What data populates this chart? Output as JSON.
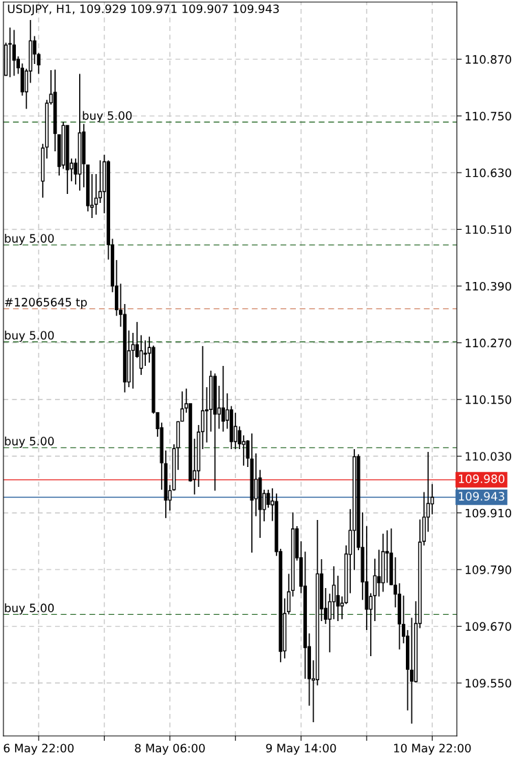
{
  "chart_data": {
    "type": "candlestick",
    "title": "USDJPY, H1, 109.929 109.971 109.907 109.943",
    "categories": [
      null,
      null,
      null,
      null,
      null,
      null,
      null,
      null,
      "6 May 22:00",
      null,
      null,
      null,
      null,
      null,
      null,
      null,
      null,
      null,
      null,
      null,
      null,
      null,
      null,
      null,
      null,
      null,
      null,
      null,
      null,
      null,
      null,
      null,
      null,
      null,
      null,
      null,
      null,
      null,
      null,
      null,
      "8 May 06:00",
      null,
      null,
      null,
      null,
      null,
      null,
      null,
      null,
      null,
      null,
      null,
      null,
      null,
      null,
      null,
      null,
      null,
      null,
      null,
      null,
      null,
      null,
      null,
      null,
      null,
      null,
      null,
      null,
      null,
      null,
      null,
      "9 May 14:00",
      null,
      null,
      null,
      null,
      null,
      null,
      null,
      null,
      null,
      null,
      null,
      null,
      null,
      null,
      null,
      null,
      null,
      null,
      null,
      null,
      null,
      null,
      null,
      null,
      null,
      null,
      null,
      null,
      null,
      null,
      null,
      "10 May 22:00"
    ],
    "ohlc": [
      [
        110.836,
        110.905,
        110.835,
        110.9
      ],
      [
        110.902,
        110.937,
        110.832,
        110.903
      ],
      [
        110.9,
        110.932,
        110.835,
        110.868
      ],
      [
        110.87,
        110.876,
        110.839,
        110.852
      ],
      [
        110.851,
        110.861,
        110.793,
        110.801
      ],
      [
        110.801,
        110.85,
        110.765,
        110.845
      ],
      [
        110.845,
        110.953,
        110.82,
        110.909
      ],
      [
        110.909,
        110.919,
        110.86,
        110.881
      ],
      [
        110.88,
        110.883,
        110.839,
        110.858
      ],
      [
        110.612,
        110.691,
        110.577,
        110.682
      ],
      [
        110.684,
        110.784,
        110.66,
        110.777
      ],
      [
        110.778,
        110.847,
        110.774,
        110.796
      ],
      [
        110.8,
        110.848,
        110.675,
        110.713
      ],
      [
        110.71,
        110.71,
        110.624,
        110.643
      ],
      [
        110.646,
        110.737,
        110.638,
        110.73
      ],
      [
        110.73,
        110.73,
        110.585,
        110.636
      ],
      [
        110.638,
        110.66,
        110.612,
        110.65
      ],
      [
        110.65,
        110.66,
        110.605,
        110.627
      ],
      [
        110.627,
        110.839,
        110.592,
        110.714
      ],
      [
        110.716,
        110.733,
        110.599,
        110.649
      ],
      [
        110.646,
        110.646,
        110.548,
        110.56
      ],
      [
        110.557,
        110.627,
        110.534,
        110.561
      ],
      [
        110.563,
        110.627,
        110.541,
        110.576
      ],
      [
        110.577,
        110.656,
        110.566,
        110.59
      ],
      [
        110.59,
        110.668,
        110.544,
        110.653
      ],
      [
        110.653,
        110.656,
        110.446,
        110.478
      ],
      [
        110.477,
        110.49,
        110.377,
        110.39
      ],
      [
        110.39,
        110.445,
        110.327,
        110.34
      ],
      [
        110.339,
        110.395,
        110.304,
        110.33
      ],
      [
        110.33,
        110.352,
        110.165,
        110.187
      ],
      [
        110.187,
        110.296,
        110.176,
        110.253
      ],
      [
        110.254,
        110.291,
        110.173,
        110.266
      ],
      [
        110.266,
        110.314,
        110.238,
        110.241
      ],
      [
        110.216,
        110.286,
        110.202,
        110.253
      ],
      [
        110.246,
        110.275,
        110.221,
        110.248
      ],
      [
        110.248,
        110.283,
        110.228,
        110.26
      ],
      [
        110.26,
        110.264,
        110.12,
        110.123
      ],
      [
        110.122,
        110.122,
        110.071,
        110.088
      ],
      [
        110.09,
        110.101,
        109.959,
        110.016
      ],
      [
        110.014,
        110.042,
        109.899,
        109.937
      ],
      [
        109.937,
        109.969,
        109.915,
        109.957
      ],
      [
        109.959,
        110.055,
        109.957,
        110.046
      ],
      [
        110.048,
        110.104,
        110.001,
        110.103
      ],
      [
        110.104,
        110.167,
        110.103,
        110.13
      ],
      [
        110.132,
        110.173,
        110.122,
        110.141
      ],
      [
        110.141,
        110.141,
        109.976,
        109.978
      ],
      [
        109.981,
        110.067,
        109.949,
        109.999
      ],
      [
        109.999,
        110.096,
        109.965,
        110.081
      ],
      [
        110.082,
        110.263,
        110.045,
        110.126
      ],
      [
        110.126,
        110.176,
        110.059,
        110.128
      ],
      [
        110.129,
        110.211,
        110.082,
        110.199
      ],
      [
        110.199,
        110.205,
        109.957,
        110.119
      ],
      [
        110.119,
        110.179,
        110.088,
        110.132
      ],
      [
        110.132,
        110.221,
        110.082,
        110.104
      ],
      [
        110.106,
        110.163,
        110.088,
        110.128
      ],
      [
        110.128,
        110.136,
        110.045,
        110.061
      ],
      [
        110.061,
        110.122,
        110.045,
        110.093
      ],
      [
        110.084,
        110.093,
        110.045,
        110.056
      ],
      [
        110.055,
        110.074,
        110.01,
        110.061
      ],
      [
        110.062,
        110.064,
        110.007,
        110.026
      ],
      [
        110.024,
        110.078,
        109.826,
        109.937
      ],
      [
        109.94,
        110.036,
        109.903,
        109.981
      ],
      [
        109.984,
        110.001,
        109.857,
        109.917
      ],
      [
        109.917,
        109.959,
        109.892,
        109.951
      ],
      [
        109.951,
        109.959,
        109.921,
        109.928
      ],
      [
        109.927,
        109.962,
        109.893,
        109.935
      ],
      [
        109.934,
        109.951,
        109.819,
        109.828
      ],
      [
        109.828,
        109.834,
        109.594,
        109.617
      ],
      [
        109.618,
        109.729,
        109.602,
        109.697
      ],
      [
        109.701,
        109.781,
        109.695,
        109.743
      ],
      [
        109.746,
        109.911,
        109.733,
        109.876
      ],
      [
        109.876,
        109.882,
        109.809,
        109.815
      ],
      [
        109.815,
        109.85,
        109.74,
        109.755
      ],
      [
        109.755,
        109.828,
        109.559,
        109.625
      ],
      [
        109.627,
        109.655,
        109.502,
        109.559
      ],
      [
        109.556,
        109.598,
        109.467,
        109.559
      ],
      [
        109.557,
        109.895,
        109.545,
        109.781
      ],
      [
        109.781,
        109.812,
        109.681,
        109.707
      ],
      [
        109.708,
        109.751,
        109.675,
        109.685
      ],
      [
        109.685,
        109.739,
        109.615,
        109.722
      ],
      [
        109.722,
        109.797,
        109.685,
        109.757
      ],
      [
        109.735,
        109.777,
        109.681,
        109.713
      ],
      [
        109.713,
        109.733,
        109.685,
        109.719
      ],
      [
        109.72,
        109.841,
        109.717,
        109.823
      ],
      [
        109.822,
        109.918,
        109.74,
        109.873
      ],
      [
        109.873,
        110.045,
        109.789,
        110.029
      ],
      [
        110.029,
        110.034,
        109.831,
        109.837
      ],
      [
        109.837,
        109.911,
        109.726,
        109.764
      ],
      [
        109.764,
        109.882,
        109.662,
        109.706
      ],
      [
        109.706,
        109.74,
        109.607,
        109.733
      ],
      [
        109.735,
        109.813,
        109.681,
        109.777
      ],
      [
        109.775,
        109.832,
        109.733,
        109.762
      ],
      [
        109.762,
        109.866,
        109.743,
        109.828
      ],
      [
        109.828,
        109.873,
        109.762,
        109.825
      ],
      [
        109.825,
        109.877,
        109.757,
        109.758
      ],
      [
        109.757,
        109.816,
        109.71,
        109.738
      ],
      [
        109.738,
        109.761,
        109.621,
        109.675
      ],
      [
        109.674,
        109.735,
        109.634,
        109.649
      ],
      [
        109.649,
        109.662,
        109.492,
        109.579
      ],
      [
        109.577,
        109.688,
        109.464,
        109.554
      ],
      [
        109.553,
        109.723,
        109.551,
        109.676
      ],
      [
        109.676,
        109.896,
        109.666,
        109.848
      ],
      [
        109.85,
        109.954,
        109.841,
        109.901
      ],
      [
        109.901,
        110.039,
        109.87,
        109.93
      ],
      [
        109.929,
        109.971,
        109.907,
        109.943
      ]
    ],
    "ylim": [
      109.438,
      110.991
    ],
    "yticks": [
      {
        "value": 109.55,
        "label": "109.550"
      },
      {
        "value": 109.67,
        "label": "109.670"
      },
      {
        "value": 109.79,
        "label": "109.790"
      },
      {
        "value": 109.91,
        "label": "109.910"
      },
      {
        "value": 110.03,
        "label": "110.030"
      },
      {
        "value": 110.15,
        "label": "110.150"
      },
      {
        "value": 110.27,
        "label": "110.270"
      },
      {
        "value": 110.39,
        "label": "110.390"
      },
      {
        "value": 110.51,
        "label": "110.510"
      },
      {
        "value": 110.63,
        "label": "110.630"
      },
      {
        "value": 110.75,
        "label": "110.750"
      },
      {
        "value": 110.87,
        "label": "110.870"
      }
    ],
    "grid": true,
    "ref_lines": [
      {
        "axis": "y",
        "value": 110.737,
        "label": "buy 5.00",
        "color": "#2f6f2f",
        "line_style": "dashed"
      },
      {
        "axis": "y",
        "value": 110.477,
        "label": "buy 5.00",
        "color": "#2f6f2f",
        "line_style": "dashed"
      },
      {
        "axis": "y",
        "value": 110.342,
        "label": "#12065645 tp",
        "color": "#d08060",
        "line_style": "dashed"
      },
      {
        "axis": "y",
        "value": 110.272,
        "label": "buy 5.00",
        "color": "#2f6f2f",
        "line_style": "dashed"
      },
      {
        "axis": "y",
        "value": 110.048,
        "label": "buy 5.00",
        "color": "#2f6f2f",
        "line_style": "dashed"
      },
      {
        "axis": "y",
        "value": 109.695,
        "label": "buy 5.00",
        "color": "#2f6f2f",
        "line_style": "dashed"
      },
      {
        "axis": "y",
        "value": 109.98,
        "label": "109.980",
        "color": "#e8231f",
        "line_style": "solid"
      },
      {
        "axis": "y",
        "value": 109.943,
        "label": "109.943",
        "color": "#3a6ea5",
        "line_style": "solid"
      }
    ]
  }
}
